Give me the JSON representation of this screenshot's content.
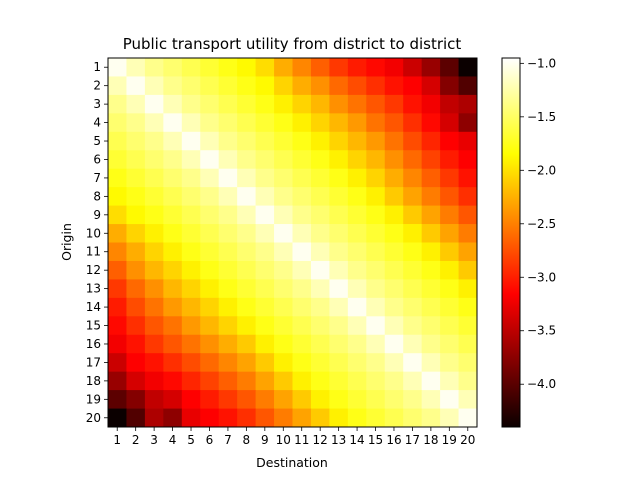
{
  "chart_data": {
    "type": "heatmap",
    "title": "Public transport utility from district to district",
    "xlabel": "Destination",
    "ylabel": "Origin",
    "x_categories": [
      "1",
      "2",
      "3",
      "4",
      "5",
      "6",
      "7",
      "8",
      "9",
      "10",
      "11",
      "12",
      "13",
      "14",
      "15",
      "16",
      "17",
      "18",
      "19",
      "20"
    ],
    "y_categories": [
      "1",
      "2",
      "3",
      "4",
      "5",
      "6",
      "7",
      "8",
      "9",
      "10",
      "11",
      "12",
      "13",
      "14",
      "15",
      "16",
      "17",
      "18",
      "19",
      "20"
    ],
    "colormap": "hot",
    "color_range": [
      -4.4,
      -0.95
    ],
    "colorbar_ticks": [
      -1.0,
      -1.5,
      -2.0,
      -2.5,
      -3.0,
      -3.5,
      -4.0
    ],
    "colorbar_tick_labels": [
      "−1.0",
      "−1.5",
      "−2.0",
      "−2.5",
      "−3.0",
      "−3.5",
      "−4.0"
    ],
    "values": [
      [
        -1.0,
        -1.2,
        -1.35,
        -1.45,
        -1.55,
        -1.65,
        -1.75,
        -1.85,
        -2.0,
        -2.25,
        -2.45,
        -2.65,
        -2.85,
        -3.0,
        -3.1,
        -3.25,
        -3.45,
        -3.7,
        -4.0,
        -4.4
      ],
      [
        -1.2,
        -1.0,
        -1.2,
        -1.35,
        -1.45,
        -1.55,
        -1.65,
        -1.75,
        -1.85,
        -2.05,
        -2.25,
        -2.4,
        -2.6,
        -2.75,
        -2.9,
        -3.05,
        -3.2,
        -3.4,
        -3.8,
        -4.05
      ],
      [
        -1.35,
        -1.2,
        -1.0,
        -1.2,
        -1.35,
        -1.45,
        -1.55,
        -1.65,
        -1.75,
        -1.9,
        -2.05,
        -2.2,
        -2.4,
        -2.55,
        -2.7,
        -2.85,
        -3.05,
        -3.25,
        -3.5,
        -3.6
      ],
      [
        -1.45,
        -1.35,
        -1.2,
        -1.0,
        -1.2,
        -1.35,
        -1.45,
        -1.55,
        -1.65,
        -1.75,
        -1.9,
        -2.05,
        -2.2,
        -2.35,
        -2.55,
        -2.7,
        -2.9,
        -3.1,
        -3.4,
        -3.75
      ],
      [
        -1.55,
        -1.45,
        -1.35,
        -1.2,
        -1.0,
        -1.2,
        -1.35,
        -1.45,
        -1.55,
        -1.65,
        -1.75,
        -1.9,
        -2.05,
        -2.2,
        -2.35,
        -2.55,
        -2.75,
        -2.95,
        -3.15,
        -3.3
      ],
      [
        -1.65,
        -1.55,
        -1.45,
        -1.35,
        -1.2,
        -1.0,
        -1.2,
        -1.35,
        -1.45,
        -1.55,
        -1.65,
        -1.75,
        -1.9,
        -2.05,
        -2.2,
        -2.4,
        -2.6,
        -2.8,
        -3.0,
        -3.2
      ],
      [
        -1.75,
        -1.65,
        -1.55,
        -1.45,
        -1.35,
        -1.2,
        -1.0,
        -1.2,
        -1.35,
        -1.45,
        -1.55,
        -1.65,
        -1.75,
        -1.9,
        -2.05,
        -2.25,
        -2.45,
        -2.65,
        -2.85,
        -3.05
      ],
      [
        -1.85,
        -1.75,
        -1.65,
        -1.55,
        -1.45,
        -1.35,
        -1.2,
        -1.0,
        -1.2,
        -1.35,
        -1.45,
        -1.55,
        -1.65,
        -1.75,
        -1.9,
        -2.1,
        -2.3,
        -2.5,
        -2.7,
        -2.9
      ],
      [
        -2.0,
        -1.85,
        -1.75,
        -1.65,
        -1.55,
        -1.45,
        -1.35,
        -1.2,
        -1.0,
        -1.2,
        -1.35,
        -1.45,
        -1.55,
        -1.65,
        -1.75,
        -1.9,
        -2.1,
        -2.3,
        -2.5,
        -2.7
      ],
      [
        -2.25,
        -2.05,
        -1.9,
        -1.75,
        -1.65,
        -1.55,
        -1.45,
        -1.35,
        -1.2,
        -1.0,
        -1.2,
        -1.35,
        -1.45,
        -1.55,
        -1.65,
        -1.75,
        -1.9,
        -2.1,
        -2.3,
        -2.5
      ],
      [
        -2.45,
        -2.25,
        -2.05,
        -1.9,
        -1.75,
        -1.65,
        -1.55,
        -1.45,
        -1.35,
        -1.2,
        -1.0,
        -1.2,
        -1.35,
        -1.45,
        -1.55,
        -1.65,
        -1.75,
        -1.9,
        -2.1,
        -2.3
      ],
      [
        -2.65,
        -2.4,
        -2.2,
        -2.05,
        -1.9,
        -1.75,
        -1.65,
        -1.55,
        -1.45,
        -1.35,
        -1.2,
        -1.0,
        -1.2,
        -1.35,
        -1.45,
        -1.55,
        -1.65,
        -1.75,
        -1.9,
        -2.1
      ],
      [
        -2.85,
        -2.6,
        -2.4,
        -2.2,
        -2.05,
        -1.9,
        -1.75,
        -1.65,
        -1.55,
        -1.45,
        -1.35,
        -1.2,
        -1.0,
        -1.2,
        -1.35,
        -1.45,
        -1.55,
        -1.65,
        -1.75,
        -1.9
      ],
      [
        -3.0,
        -2.75,
        -2.55,
        -2.35,
        -2.2,
        -2.05,
        -1.9,
        -1.75,
        -1.65,
        -1.55,
        -1.45,
        -1.35,
        -1.2,
        -1.0,
        -1.2,
        -1.35,
        -1.45,
        -1.55,
        -1.65,
        -1.75
      ],
      [
        -3.1,
        -2.9,
        -2.7,
        -2.55,
        -2.35,
        -2.2,
        -2.05,
        -1.9,
        -1.75,
        -1.65,
        -1.55,
        -1.45,
        -1.35,
        -1.2,
        -1.0,
        -1.2,
        -1.35,
        -1.45,
        -1.55,
        -1.65
      ],
      [
        -3.25,
        -3.05,
        -2.85,
        -2.7,
        -2.55,
        -2.4,
        -2.25,
        -2.1,
        -1.9,
        -1.75,
        -1.65,
        -1.55,
        -1.45,
        -1.35,
        -1.2,
        -1.0,
        -1.2,
        -1.35,
        -1.45,
        -1.55
      ],
      [
        -3.45,
        -3.2,
        -3.05,
        -2.9,
        -2.75,
        -2.6,
        -2.45,
        -2.3,
        -2.1,
        -1.9,
        -1.75,
        -1.65,
        -1.55,
        -1.45,
        -1.35,
        -1.2,
        -1.0,
        -1.2,
        -1.35,
        -1.45
      ],
      [
        -3.7,
        -3.4,
        -3.25,
        -3.1,
        -2.95,
        -2.8,
        -2.65,
        -2.5,
        -2.3,
        -2.1,
        -1.9,
        -1.75,
        -1.65,
        -1.55,
        -1.45,
        -1.35,
        -1.2,
        -1.0,
        -1.2,
        -1.35
      ],
      [
        -4.0,
        -3.8,
        -3.5,
        -3.4,
        -3.15,
        -3.0,
        -2.85,
        -2.7,
        -2.5,
        -2.3,
        -2.1,
        -1.9,
        -1.75,
        -1.65,
        -1.55,
        -1.45,
        -1.35,
        -1.2,
        -1.0,
        -1.2
      ],
      [
        -4.4,
        -4.05,
        -3.6,
        -3.75,
        -3.3,
        -3.2,
        -3.05,
        -2.9,
        -2.7,
        -2.5,
        -2.3,
        -2.1,
        -1.9,
        -1.75,
        -1.65,
        -1.55,
        -1.45,
        -1.35,
        -1.2,
        -1.0
      ]
    ]
  }
}
